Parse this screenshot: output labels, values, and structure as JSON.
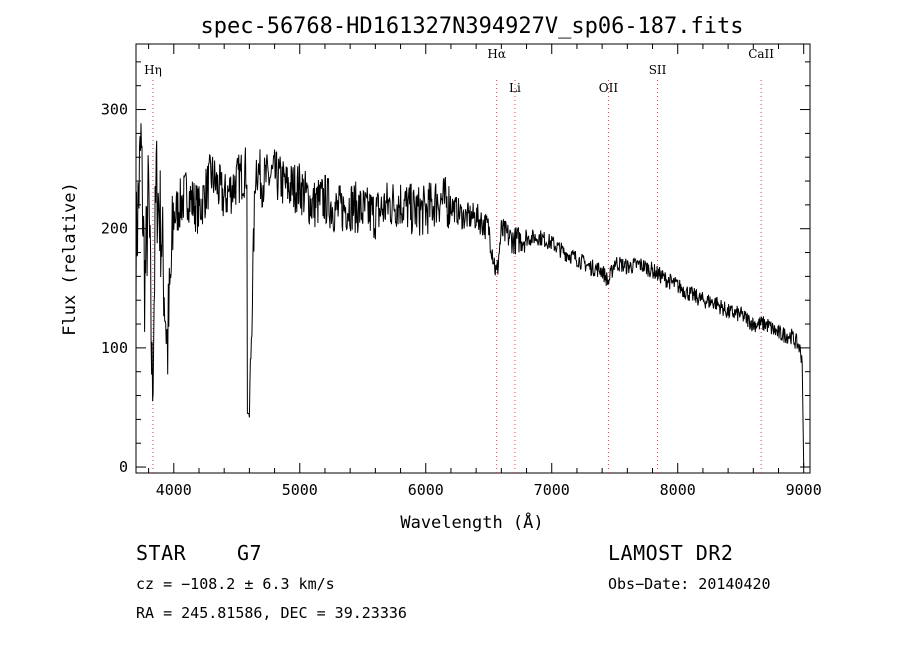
{
  "chart_data": {
    "type": "line",
    "title": "spec-56768-HD161327N394927V_sp06-187.fits",
    "xlabel": "Wavelength (Å)",
    "ylabel": "Flux (relative)",
    "xlim": [
      3700,
      9050
    ],
    "ylim": [
      -5,
      355
    ],
    "x_ticks": [
      "4000",
      "5000",
      "6000",
      "7000",
      "8000",
      "9000"
    ],
    "y_ticks": [
      "0",
      "100",
      "200",
      "300"
    ],
    "grid": false,
    "line_markers": [
      {
        "label": "Hη",
        "wavelength": 3835
      },
      {
        "label": "Hα",
        "wavelength": 6563
      },
      {
        "label": "Li",
        "wavelength": 6708
      },
      {
        "label": "OII",
        "wavelength": 7450
      },
      {
        "label": "SII",
        "wavelength": 7840
      },
      {
        "label": "CaII",
        "wavelength": 8662
      }
    ],
    "series": [
      {
        "x": [
          3700,
          3740,
          3770,
          3800,
          3830,
          3860,
          3900,
          3950,
          4000,
          4100,
          4200,
          4300,
          4400,
          4500,
          4580,
          4600,
          4650,
          4700,
          4800,
          4900,
          5000,
          5100,
          5200,
          5300,
          5400,
          5500,
          5600,
          5700,
          5800,
          5900,
          6000,
          6100,
          6200,
          6300,
          6400,
          6500,
          6563,
          6600,
          6700,
          6800,
          6900,
          7000,
          7100,
          7200,
          7300,
          7400,
          7450,
          7500,
          7600,
          7700,
          7800,
          7900,
          8000,
          8100,
          8200,
          8300,
          8400,
          8500,
          8600,
          8700,
          8800,
          8900,
          8960,
          8990,
          9000
        ],
        "y": [
          180,
          270,
          150,
          230,
          60,
          240,
          200,
          100,
          210,
          230,
          215,
          245,
          225,
          240,
          250,
          45,
          255,
          240,
          245,
          235,
          235,
          220,
          225,
          215,
          220,
          215,
          212,
          220,
          222,
          215,
          215,
          225,
          220,
          210,
          210,
          200,
          160,
          198,
          190,
          192,
          193,
          188,
          180,
          175,
          168,
          165,
          155,
          172,
          168,
          170,
          165,
          158,
          152,
          145,
          140,
          138,
          130,
          128,
          120,
          120,
          112,
          110,
          102,
          90,
          0
        ]
      }
    ]
  },
  "footer": {
    "object_type": "STAR",
    "subclass": "G7",
    "survey": "LAMOST DR2",
    "cz": "cz = −108.2 ± 6.3 km/s",
    "obs_date": "Obs−Date: 20140420",
    "coords": "RA = 245.81586, DEC =  39.23336"
  }
}
